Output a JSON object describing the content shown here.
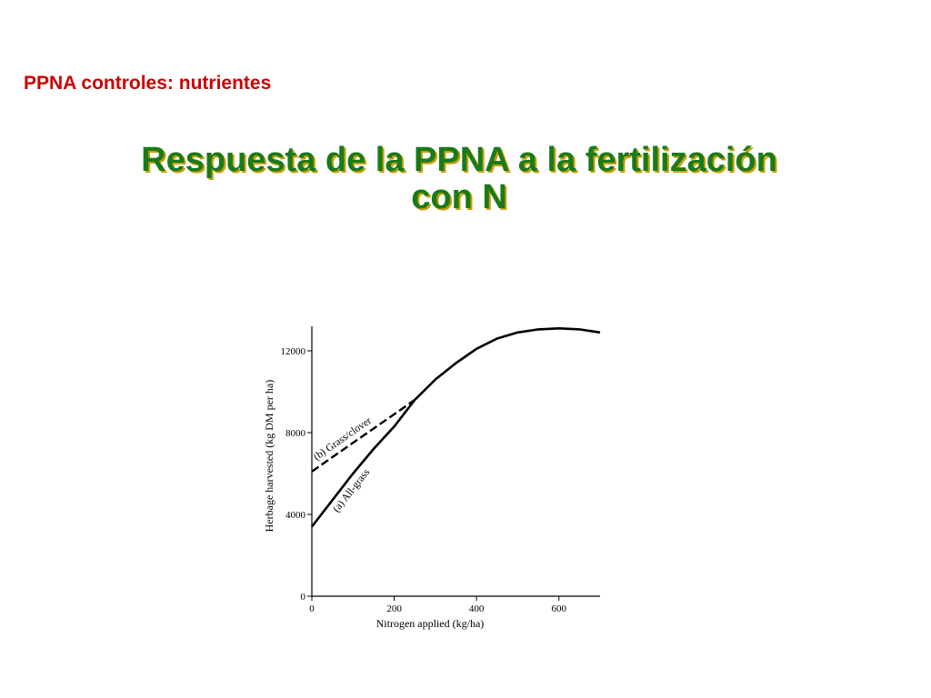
{
  "slide": {
    "section_bold": "PPNA controles",
    "section_rest": ": nutrientes",
    "title_line1": "Respuesta de la PPNA a la fertilización",
    "title_line2": "con N"
  },
  "colors": {
    "section_label": "#cc0000",
    "title": "#1a7a1a",
    "title_shadow": "#c9a000"
  },
  "chart_data": {
    "type": "line",
    "title": "",
    "xlabel": "Nitrogen applied (kg/ha)",
    "ylabel": "Herbage harvested (kg DM per ha)",
    "xlim": [
      0,
      700
    ],
    "ylim": [
      0,
      13200
    ],
    "xticks": [
      0,
      200,
      400,
      600
    ],
    "yticks": [
      0,
      4000,
      8000,
      12000
    ],
    "grid": false,
    "series": [
      {
        "name": "(a) All-grass",
        "style": "solid",
        "x": [
          0,
          50,
          100,
          150,
          200,
          250,
          300,
          350,
          400,
          450,
          500,
          550,
          600,
          650,
          700
        ],
        "y": [
          3400,
          4700,
          6000,
          7200,
          8300,
          9600,
          10600,
          11400,
          12100,
          12600,
          12900,
          13050,
          13100,
          13050,
          12900
        ]
      },
      {
        "name": "(b) Grass/clover",
        "style": "dashed",
        "x": [
          0,
          50,
          100,
          150,
          200,
          250
        ],
        "y": [
          6100,
          6800,
          7500,
          8200,
          8900,
          9600
        ]
      }
    ]
  }
}
